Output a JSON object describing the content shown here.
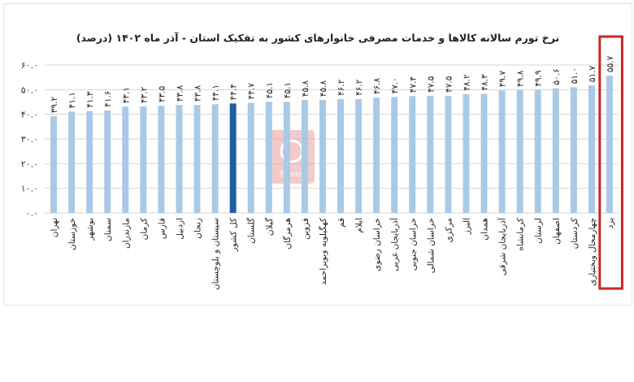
{
  "chart_data": {
    "type": "bar",
    "title": "نرخ تورم سالانه کالاها و خدمات مصرفی خانوارهای کشور به تفکیک استان - آذر ماه ۱۴۰۲ (درصد)",
    "xlabel": "",
    "ylabel": "",
    "ylim": [
      0,
      60
    ],
    "yticks": [
      0,
      10,
      20,
      30,
      40,
      50,
      60
    ],
    "ytick_labels": [
      "۰.۰",
      "۱۰.۰",
      "۲۰.۰",
      "۳۰.۰",
      "۴۰.۰",
      "۵۰.۰",
      "۶۰.۰"
    ],
    "grid": true,
    "legend": "none",
    "categories": [
      "تهران",
      "خوزستان",
      "بوشهر",
      "سمنان",
      "مازندران",
      "کرمان",
      "فارس",
      "اردبیل",
      "زنجان",
      "سیستان و بلوچستان",
      "کل کشور",
      "گلستان",
      "گیلان",
      "هرمزگان",
      "قزوین",
      "کهگیلویه وبویراحمد",
      "قم",
      "ایلام",
      "خراسان رضوی",
      "آذربایجان غربی",
      "خراسان جنوبی",
      "خراسان شمالی",
      "مرکزی",
      "البرز",
      "همدان",
      "آذربایجان شرقی",
      "کرمانشاه",
      "لرستان",
      "اصفهان",
      "کردستان",
      "چهارمحال وبختیاری",
      "یزد"
    ],
    "values": [
      39.2,
      41.1,
      41.3,
      41.6,
      43.1,
      43.2,
      43.5,
      43.8,
      43.8,
      44.1,
      44.4,
      44.7,
      45.1,
      45.1,
      45.8,
      45.8,
      46.2,
      46.2,
      46.8,
      47.0,
      47.4,
      47.5,
      47.5,
      48.2,
      48.3,
      49.7,
      49.8,
      49.9,
      50.6,
      51.0,
      51.7,
      55.7
    ],
    "value_labels": [
      "۳۹.۲",
      "۴۱.۱",
      "۴۱.۳",
      "۴۱.۶",
      "۴۳.۱",
      "۴۳.۲",
      "۴۳.۵",
      "۴۳.۸",
      "۴۳.۸",
      "۴۴.۱",
      "۴۴.۴",
      "۴۴.۷",
      "۴۵.۱",
      "۴۵.۱",
      "۴۵.۸",
      "۴۵.۸",
      "۴۶.۲",
      "۴۶.۲",
      "۴۶.۸",
      "۴۷.۰",
      "۴۷.۴",
      "۴۷.۵",
      "۴۷.۵",
      "۴۸.۲",
      "۴۸.۳",
      "۴۹.۷",
      "۴۹.۸",
      "۴۹.۹",
      "۵۰.۶",
      "۵۱.۰",
      "۵۱.۷",
      "۵۵.۷"
    ],
    "highlight_index": 10,
    "boxed_index": 31,
    "colors": {
      "bar": "#a9c9e6",
      "highlight_bar": "#1f5fa0",
      "grid": "#d4d4d4",
      "box": "#c62828",
      "watermark": "#e8a0a0"
    }
  },
  "watermark": {
    "icon": "tasnim-logo-icon",
    "text": "Tasnim"
  }
}
